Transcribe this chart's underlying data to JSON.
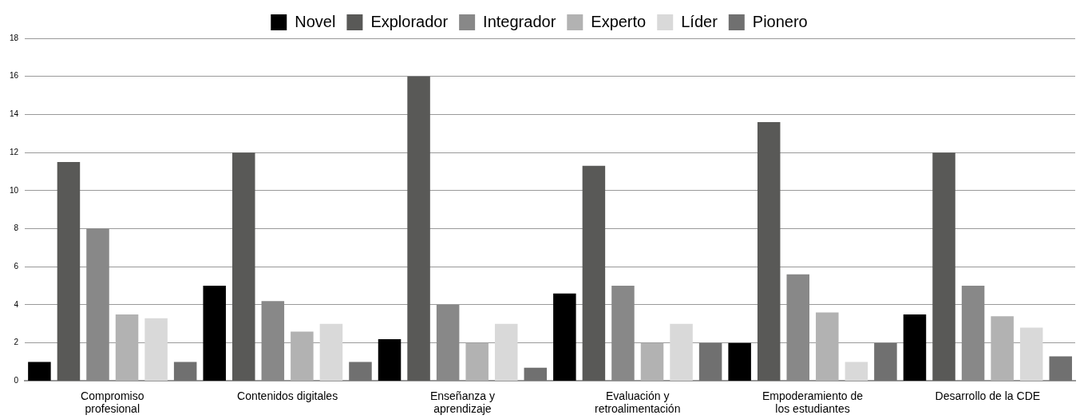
{
  "chart_data": {
    "type": "bar",
    "categories": [
      "Compromiso profesional",
      "Contenidos digitales",
      "Enseñanza y aprendizaje",
      "Evaluación y retroalimentación",
      "Empoderamiento de los estudiantes",
      "Desarrollo de la CDE"
    ],
    "series": [
      {
        "name": "Novel",
        "color": "#000000",
        "values": [
          1.0,
          5.0,
          2.2,
          4.6,
          2.0,
          3.5
        ]
      },
      {
        "name": "Explorador",
        "color": "#595957",
        "values": [
          11.5,
          12.0,
          16.0,
          11.3,
          13.6,
          12.0
        ]
      },
      {
        "name": "Integrador",
        "color": "#888888",
        "values": [
          8.0,
          4.2,
          4.0,
          5.0,
          5.6,
          5.0
        ]
      },
      {
        "name": "Experto",
        "color": "#b2b2b2",
        "values": [
          3.5,
          2.6,
          2.0,
          2.0,
          3.6,
          3.4
        ]
      },
      {
        "name": "Líder",
        "color": "#d9d9d9",
        "values": [
          3.3,
          3.0,
          3.0,
          3.0,
          1.0,
          2.8
        ]
      },
      {
        "name": "Pionero",
        "color": "#707070",
        "values": [
          1.0,
          1.0,
          0.7,
          2.0,
          2.0,
          1.3
        ]
      }
    ],
    "ylim": [
      0,
      18
    ],
    "yticks": [
      0,
      2,
      4,
      6,
      8,
      10,
      12,
      14,
      16,
      18
    ],
    "grid": "y",
    "legend": "top"
  }
}
